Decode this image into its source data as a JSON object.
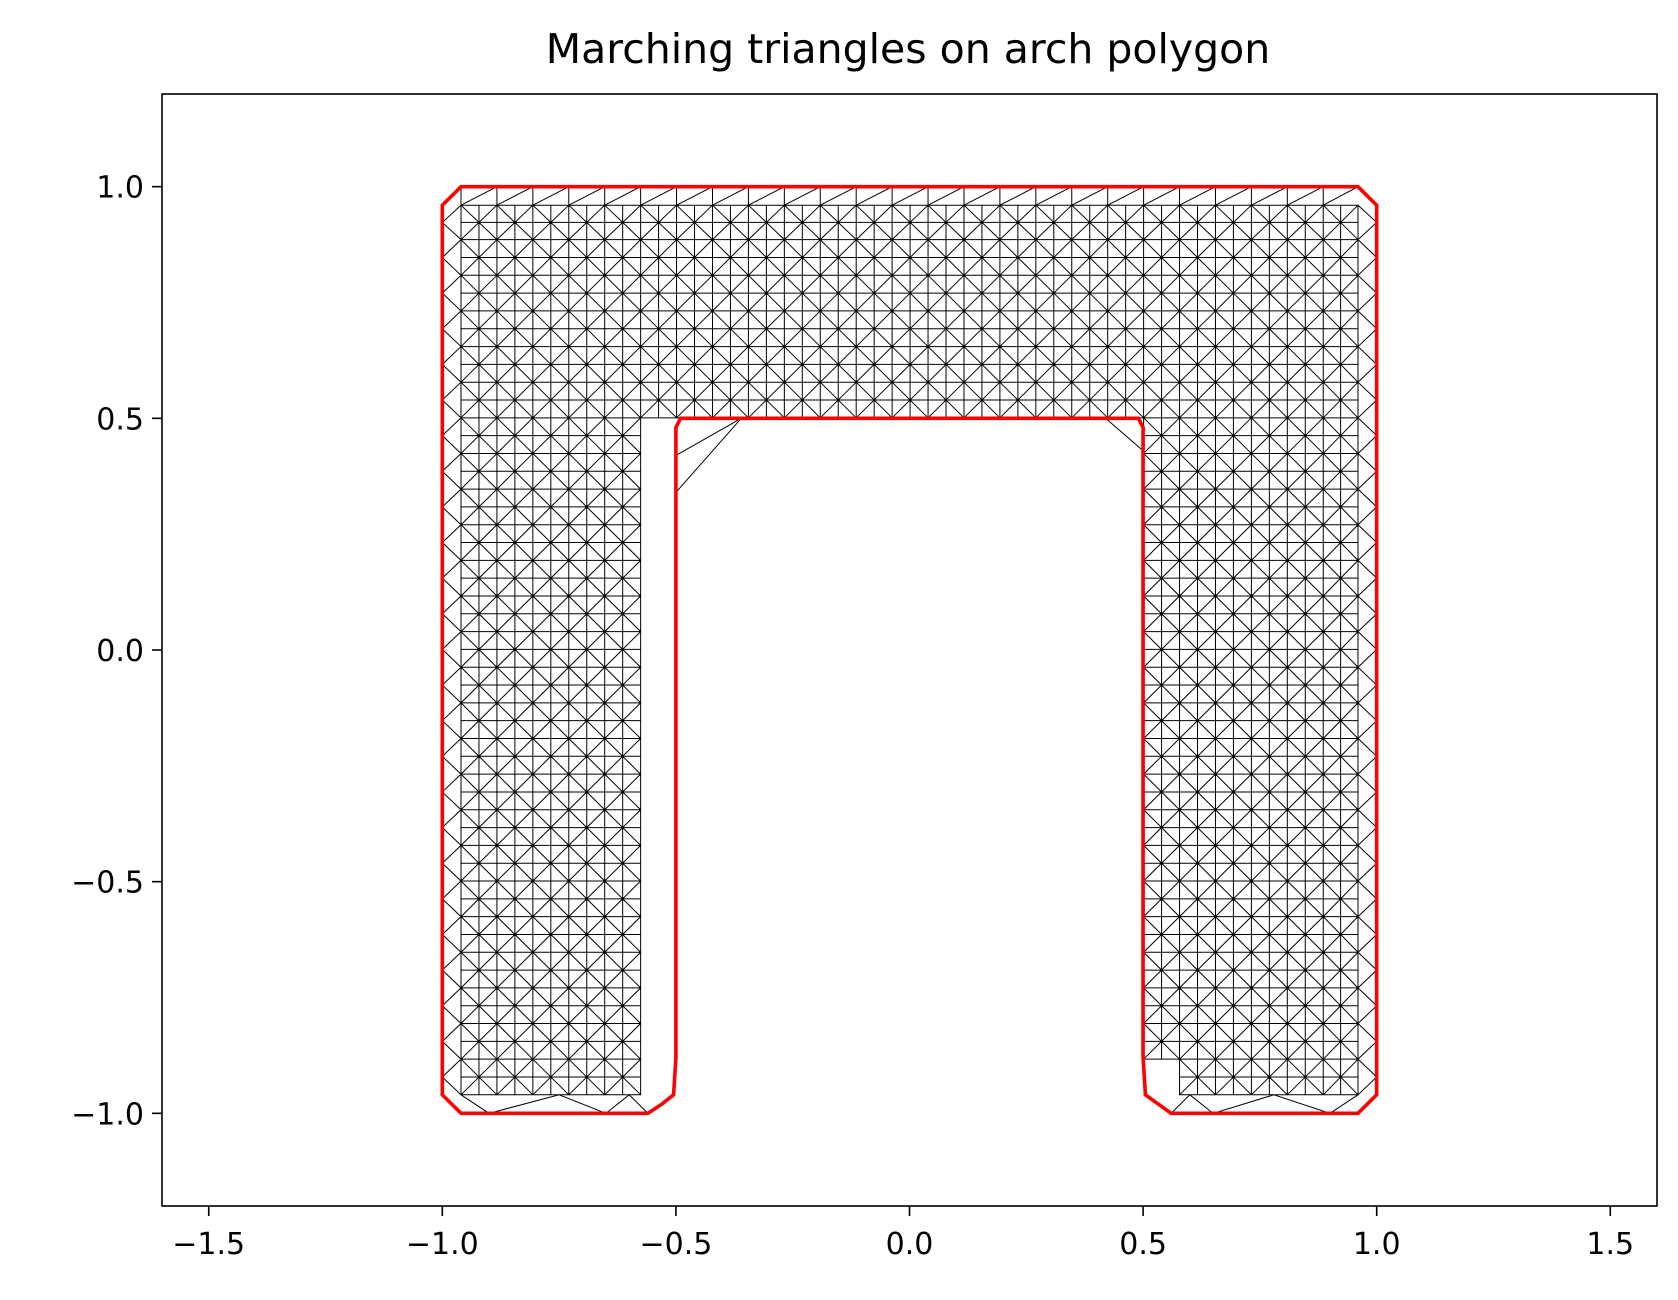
{
  "chart_data": {
    "type": "mesh",
    "title": "Marching triangles on arch polygon",
    "xlabel": "",
    "ylabel": "",
    "xlim": [
      -1.6,
      1.6
    ],
    "ylim": [
      -1.2,
      1.2
    ],
    "xticks": [
      -1.5,
      -1.0,
      -0.5,
      0.0,
      0.5,
      1.0,
      1.5
    ],
    "xtick_labels": [
      "−1.5",
      "−1.0",
      "−0.5",
      "0.0",
      "0.5",
      "1.0",
      "1.5"
    ],
    "yticks": [
      -1.0,
      -0.5,
      0.0,
      0.5,
      1.0
    ],
    "ytick_labels": [
      "−1.0",
      "−0.5",
      "0.0",
      "0.5",
      "1.0"
    ],
    "grid": false,
    "mesh_cell_size": 0.0769,
    "mesh_color": "#000000",
    "outline_color": "#ff0000",
    "polygon_outline": [
      [
        -0.96,
        -1.0
      ],
      [
        -0.56,
        -1.0
      ],
      [
        -0.53,
        -0.98
      ],
      [
        -0.505,
        -0.96
      ],
      [
        -0.5,
        -0.88
      ],
      [
        -0.5,
        0.48
      ],
      [
        -0.49,
        0.5
      ],
      [
        0.42,
        0.5
      ],
      [
        0.49,
        0.5
      ],
      [
        0.5,
        0.48
      ],
      [
        0.5,
        -0.88
      ],
      [
        0.505,
        -0.96
      ],
      [
        0.56,
        -1.0
      ],
      [
        0.96,
        -1.0
      ],
      [
        1.0,
        -0.96
      ],
      [
        1.0,
        0.96
      ],
      [
        0.96,
        1.0
      ],
      [
        -0.96,
        1.0
      ],
      [
        -1.0,
        0.96
      ],
      [
        -1.0,
        -0.96
      ],
      [
        -0.96,
        -1.0
      ]
    ]
  }
}
